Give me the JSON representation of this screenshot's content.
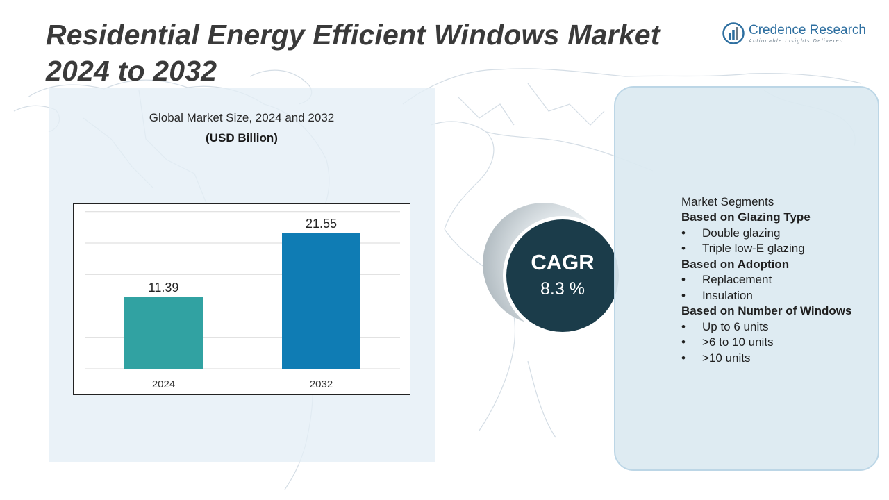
{
  "header": {
    "title": "Residential Energy Efficient Windows Market 2024 to 2032"
  },
  "logo": {
    "name": "Credence Research",
    "tagline": "Actionable Insights Delivered"
  },
  "chart_data": {
    "type": "bar",
    "title": "Global Market Size, 2024 and 2032",
    "unit": "(USD Billion)",
    "categories": [
      "2024",
      "2032"
    ],
    "values": [
      11.39,
      21.55
    ],
    "data_labels": [
      "11.39",
      "21.55"
    ],
    "bar_colors": [
      "#31a2a2",
      "#0f7cb4"
    ],
    "ylim": [
      0,
      25
    ],
    "grid": true,
    "xlabel": "",
    "ylabel": ""
  },
  "cagr": {
    "label": "CAGR",
    "value": "8.3 %"
  },
  "segments": {
    "heading": "Market Segments",
    "groups": [
      {
        "title": "Based on Glazing Type",
        "items": [
          "Double glazing",
          "Triple low-E glazing"
        ]
      },
      {
        "title": "Based on Adoption",
        "items": [
          "Replacement",
          "Insulation"
        ]
      },
      {
        "title": "Based on Number of Windows",
        "items": [
          "Up to 6 units",
          ">6 to 10 units",
          ">10 units"
        ]
      }
    ],
    "bullet": "•"
  },
  "colors": {
    "title_text": "#3a3a3a",
    "chart_panel": "#e4eef6",
    "cagr_circle": "#1b3c4a",
    "segment_panel": "#dbe9f1",
    "brand": "#2e6fa0"
  }
}
